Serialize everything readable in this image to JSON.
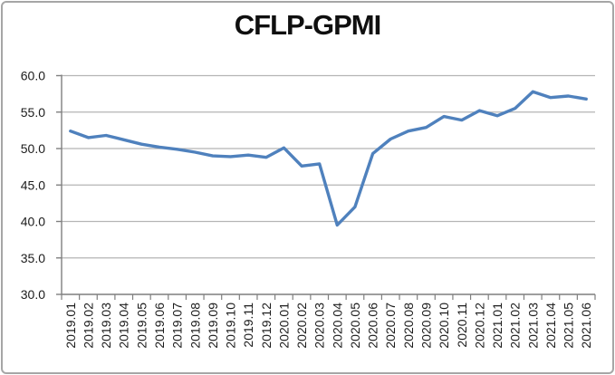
{
  "frame": {
    "border_color": "#a6a6a6",
    "background": "#ffffff"
  },
  "chart_data": {
    "type": "line",
    "title": "CFLP-GPMI",
    "categories": [
      "2019.01",
      "2019.02",
      "2019.03",
      "2019.04",
      "2019.05",
      "2019.06",
      "2019.07",
      "2019.08",
      "2019.09",
      "2019.10",
      "2019.11",
      "2019.12",
      "2020.01",
      "2020.02",
      "2020.03",
      "2020.04",
      "2020.05",
      "2020.06",
      "2020.07",
      "2020.08",
      "2020.09",
      "2020.10",
      "2020.11",
      "2020.12",
      "2021.01",
      "2021.02",
      "2021.03",
      "2021.04",
      "2021.05",
      "2021.06"
    ],
    "series": [
      {
        "name": "CFLP-GPMI",
        "color": "#4F81BD",
        "values": [
          52.4,
          51.5,
          51.8,
          51.2,
          50.6,
          50.2,
          49.9,
          49.5,
          49.0,
          48.9,
          49.1,
          48.8,
          50.1,
          47.6,
          47.9,
          39.5,
          42.0,
          49.3,
          51.3,
          52.4,
          52.9,
          54.4,
          53.9,
          55.2,
          54.5,
          55.5,
          57.8,
          57.0,
          57.2,
          56.8
        ]
      }
    ],
    "xlabel": "",
    "ylabel": "",
    "ylim": [
      30.0,
      60.0
    ],
    "ytick_step": 5.0,
    "ytick_labels": [
      "60.0",
      "55.0",
      "50.0",
      "45.0",
      "40.0",
      "35.0",
      "30.0"
    ],
    "x_label_rotation": -90,
    "grid": "horizontal",
    "legend": "none",
    "colors": {
      "gridline": "#b5b5b5",
      "axis": "#7f7f7f",
      "tick": "#7f7f7f",
      "label_text": "#1c1c1c",
      "title_text": "#0f0f0f"
    }
  }
}
